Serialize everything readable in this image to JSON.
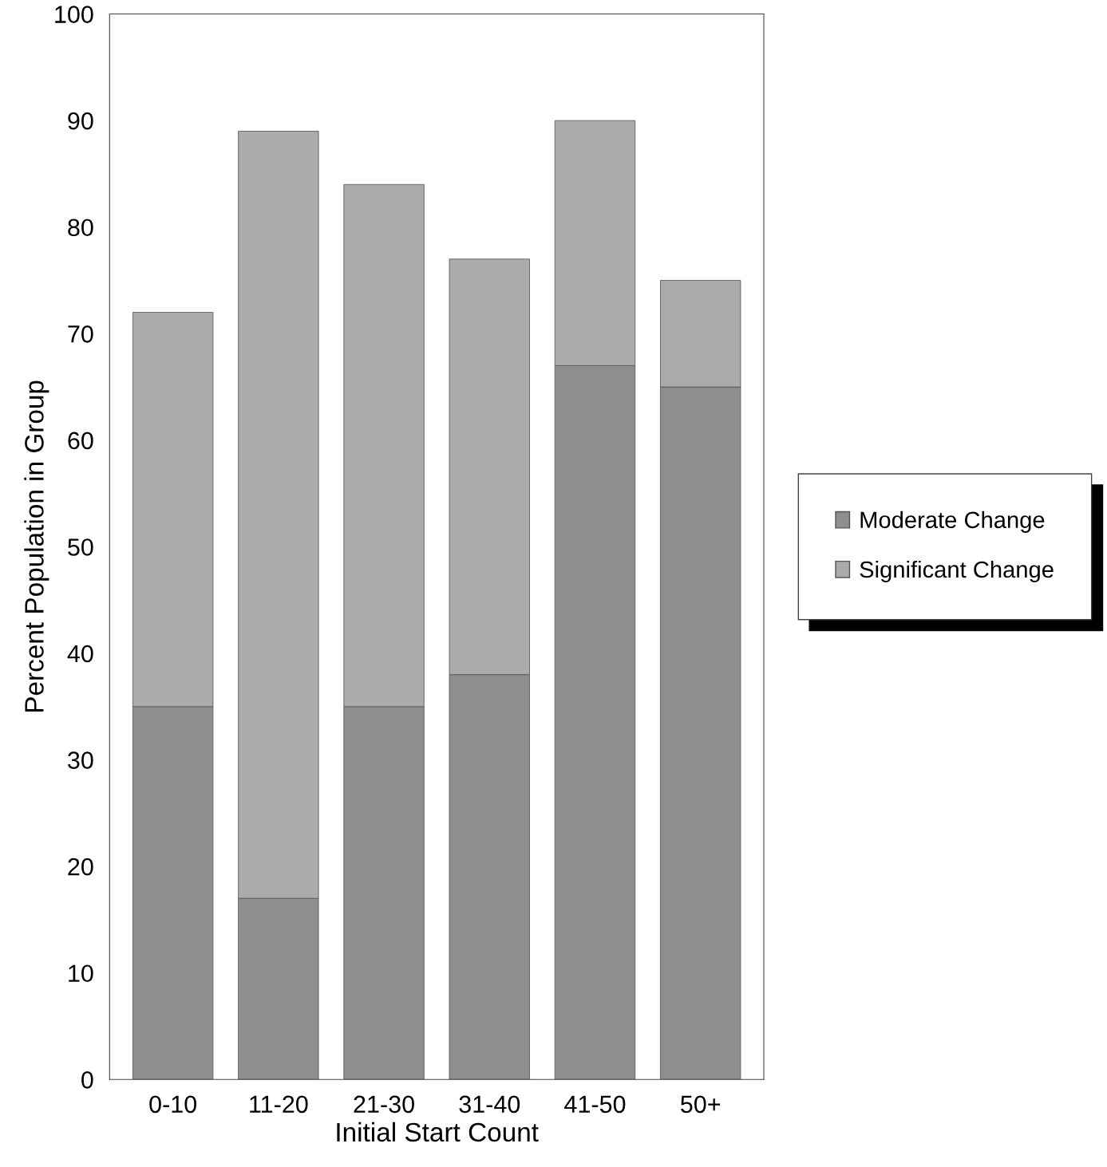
{
  "chart_data": {
    "type": "bar",
    "stacked": true,
    "xlabel": "Initial Start Count",
    "ylabel": "Percent Population in Group",
    "categories": [
      "0-10",
      "11-20",
      "21-30",
      "31-40",
      "41-50",
      "50+"
    ],
    "series": [
      {
        "name": "Moderate Change",
        "color": "#8e8e8e",
        "values": [
          35,
          17,
          35,
          38,
          67,
          65
        ]
      },
      {
        "name": "Significant Change",
        "color": "#ababab",
        "values": [
          37,
          72,
          49,
          39,
          23,
          10
        ]
      }
    ],
    "ylim": [
      0,
      100
    ],
    "yticks": [
      0,
      10,
      20,
      30,
      40,
      50,
      60,
      70,
      80,
      90,
      100
    ],
    "grid": false,
    "legend": "right"
  }
}
